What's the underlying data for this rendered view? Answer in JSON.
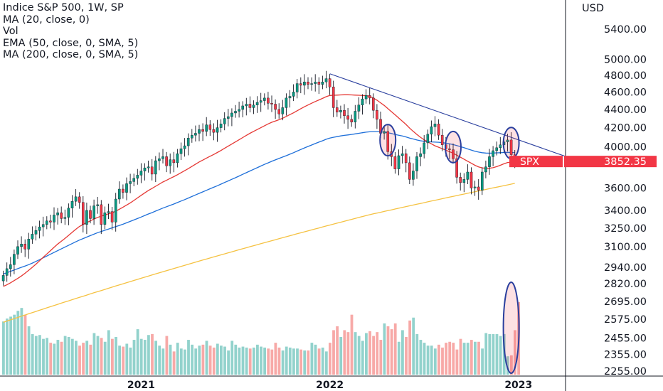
{
  "legend": {
    "title": "Indice S&P 500, 1W, SP",
    "lines": [
      "MA (20, close, 0)",
      "Vol",
      "EMA (50, close, 0, SMA, 5)",
      "MA (200, close, 0, SMA, 5)"
    ]
  },
  "colors": {
    "up": "#089981",
    "down": "#f23645",
    "vol_up": "#92d2cc",
    "vol_down": "#f7a9a7",
    "ma20": "#e53935",
    "ema50": "#1e6fd9",
    "ma200": "#f5c242",
    "trendline": "#2a3f9e",
    "circle": "#2a3f9e",
    "price_tag": "#f23645",
    "axis_text": "#131722",
    "axis_line": "#131722"
  },
  "chart_data": {
    "type": "candlestick",
    "currency": "USD",
    "y_ticks": [
      5400,
      5000,
      4800,
      4600,
      4400,
      4200,
      4000,
      3852.35,
      3600,
      3400,
      3250,
      3100,
      2940,
      2820,
      2695,
      2575,
      2455,
      2355,
      2255
    ],
    "y_tick_labels": [
      "5400.00",
      "5000.00",
      "4800.00",
      "4600.00",
      "4400.00",
      "4200.00",
      "4000.00",
      "3852.35",
      "3600.00",
      "3400.00",
      "3250.00",
      "3100.00",
      "2940.00",
      "2820.00",
      "2695.00",
      "2575.00",
      "2455.00",
      "2355.00",
      "2255.00"
    ],
    "x_ticks": [
      {
        "label": "2021",
        "week": 38
      },
      {
        "label": "2022",
        "week": 90
      },
      {
        "label": "2023",
        "week": 142
      }
    ],
    "last_price": {
      "symbol": "SPX",
      "value": "3852.35"
    },
    "closes": [
      2880,
      2930,
      2960,
      3040,
      3100,
      3120,
      3080,
      3160,
      3200,
      3230,
      3260,
      3280,
      3310,
      3300,
      3360,
      3380,
      3330,
      3340,
      3420,
      3480,
      3520,
      3470,
      3280,
      3400,
      3330,
      3440,
      3450,
      3280,
      3380,
      3390,
      3300,
      3500,
      3590,
      3560,
      3640,
      3660,
      3690,
      3720,
      3760,
      3790,
      3800,
      3730,
      3860,
      3880,
      3900,
      3810,
      3870,
      3840,
      3930,
      3980,
      4010,
      4090,
      4120,
      4140,
      4180,
      4160,
      4230,
      4180,
      4150,
      4200,
      4240,
      4300,
      4320,
      4360,
      4380,
      4400,
      4440,
      4460,
      4420,
      4450,
      4480,
      4500,
      4530,
      4470,
      4460,
      4400,
      4350,
      4420,
      4530,
      4550,
      4600,
      4700,
      4680,
      4720,
      4690,
      4700,
      4720,
      4690,
      4720,
      4760,
      4660,
      4420,
      4370,
      4390,
      4330,
      4290,
      4260,
      4380,
      4450,
      4520,
      4560,
      4530,
      4390,
      4290,
      4140,
      4160,
      3950,
      3900,
      3780,
      3910,
      3930,
      3840,
      3680,
      3760,
      3900,
      3930,
      4040,
      4130,
      4210,
      4240,
      4120,
      4020,
      3980,
      3970,
      3880,
      3700,
      3650,
      3680,
      3750,
      3600,
      3610,
      3580,
      3750,
      3800,
      3900,
      3960,
      3990,
      4020,
      4050,
      4070,
      3920,
      3850
    ],
    "ma20": [
      2800,
      2812,
      2826,
      2842,
      2858,
      2876,
      2896,
      2918,
      2940,
      2964,
      2990,
      3016,
      3042,
      3068,
      3094,
      3120,
      3142,
      3165,
      3190,
      3215,
      3240,
      3264,
      3280,
      3296,
      3310,
      3326,
      3340,
      3350,
      3360,
      3370,
      3380,
      3393,
      3410,
      3428,
      3447,
      3466,
      3487,
      3510,
      3533,
      3556,
      3578,
      3596,
      3616,
      3636,
      3656,
      3672,
      3690,
      3706,
      3724,
      3744,
      3763,
      3783,
      3804,
      3826,
      3848,
      3866,
      3886,
      3904,
      3922,
      3942,
      3962,
      3984,
      4006,
      4028,
      4050,
      4072,
      4095,
      4118,
      4140,
      4160,
      4180,
      4200,
      4220,
      4240,
      4258,
      4272,
      4286,
      4302,
      4322,
      4342,
      4362,
      4385,
      4408,
      4430,
      4450,
      4470,
      4490,
      4508,
      4526,
      4546,
      4560,
      4562,
      4564,
      4566,
      4568,
      4568,
      4566,
      4564,
      4562,
      4560,
      4558,
      4550,
      4530,
      4505,
      4475,
      4445,
      4410,
      4375,
      4340,
      4305,
      4270,
      4235,
      4195,
      4160,
      4128,
      4098,
      4072,
      4050,
      4030,
      4010,
      3995,
      3980,
      3965,
      3950,
      3935,
      3915,
      3895,
      3875,
      3855,
      3835,
      3815,
      3800,
      3790,
      3785,
      3786,
      3792,
      3802,
      3815,
      3830,
      3842,
      3846,
      3850
    ],
    "ema50": [
      2890,
      2900,
      2910,
      2920,
      2930,
      2940,
      2950,
      2960,
      2972,
      2985,
      2998,
      3012,
      3026,
      3040,
      3054,
      3068,
      3082,
      3096,
      3110,
      3124,
      3138,
      3152,
      3164,
      3176,
      3188,
      3200,
      3212,
      3222,
      3232,
      3242,
      3252,
      3262,
      3272,
      3282,
      3294,
      3306,
      3318,
      3330,
      3343,
      3356,
      3369,
      3381,
      3394,
      3407,
      3420,
      3432,
      3444,
      3456,
      3469,
      3482,
      3495,
      3509,
      3523,
      3537,
      3551,
      3565,
      3579,
      3593,
      3607,
      3621,
      3636,
      3651,
      3666,
      3681,
      3696,
      3712,
      3728,
      3744,
      3760,
      3776,
      3792,
      3808,
      3824,
      3839,
      3854,
      3868,
      3882,
      3896,
      3910,
      3925,
      3940,
      3956,
      3972,
      3988,
      4003,
      4018,
      4033,
      4048,
      4062,
      4077,
      4090,
      4098,
      4105,
      4112,
      4118,
      4123,
      4128,
      4134,
      4140,
      4146,
      4152,
      4156,
      4158,
      4158,
      4155,
      4152,
      4146,
      4138,
      4128,
      4120,
      4112,
      4102,
      4090,
      4080,
      4070,
      4062,
      4056,
      4052,
      4050,
      4048,
      4046,
      4042,
      4037,
      4030,
      4022,
      4012,
      4002,
      3990,
      3978,
      3966,
      3955,
      3946,
      3940,
      3936,
      3935,
      3936,
      3938,
      3940,
      3942,
      3943,
      3942,
      3940
    ],
    "ma200": [
      2555,
      2563,
      2571,
      2579,
      2587,
      2595,
      2603,
      2611,
      2619,
      2627,
      2635,
      2643,
      2651,
      2659,
      2667,
      2675,
      2683,
      2691,
      2699,
      2707,
      2715,
      2723,
      2731,
      2739,
      2747,
      2755,
      2763,
      2771,
      2779,
      2787,
      2795,
      2803,
      2811,
      2819,
      2827,
      2835,
      2843,
      2851,
      2859,
      2867,
      2875,
      2883,
      2891,
      2899,
      2907,
      2915,
      2923,
      2931,
      2939,
      2947,
      2955,
      2963,
      2971,
      2979,
      2987,
      2995,
      3003,
      3011,
      3019,
      3027,
      3035,
      3043,
      3051,
      3059,
      3067,
      3075,
      3083,
      3091,
      3099,
      3107,
      3115,
      3123,
      3131,
      3139,
      3147,
      3155,
      3163,
      3171,
      3179,
      3187,
      3195,
      3203,
      3211,
      3219,
      3227,
      3235,
      3243,
      3251,
      3259,
      3267,
      3275,
      3283,
      3291,
      3299,
      3307,
      3315,
      3323,
      3331,
      3339,
      3347,
      3355,
      3363,
      3370,
      3377,
      3384,
      3391,
      3398,
      3405,
      3412,
      3419,
      3426,
      3433,
      3440,
      3447,
      3454,
      3461,
      3468,
      3475,
      3482,
      3489,
      3496,
      3503,
      3510,
      3517,
      3524,
      3531,
      3538,
      3545,
      3552,
      3559,
      3566,
      3573,
      3580,
      3587,
      3594,
      3601,
      3608,
      3615,
      3622,
      3629,
      3636,
      3643
    ],
    "volume_relative": [
      0.55,
      0.58,
      0.6,
      0.62,
      0.66,
      0.69,
      0.62,
      0.5,
      0.42,
      0.4,
      0.41,
      0.37,
      0.38,
      0.33,
      0.32,
      0.36,
      0.34,
      0.4,
      0.39,
      0.37,
      0.35,
      0.3,
      0.33,
      0.35,
      0.31,
      0.43,
      0.4,
      0.38,
      0.34,
      0.46,
      0.37,
      0.39,
      0.3,
      0.29,
      0.32,
      0.28,
      0.36,
      0.47,
      0.37,
      0.36,
      0.41,
      0.42,
      0.35,
      0.3,
      0.27,
      0.4,
      0.31,
      0.24,
      0.33,
      0.27,
      0.26,
      0.36,
      0.31,
      0.27,
      0.3,
      0.31,
      0.35,
      0.3,
      0.28,
      0.32,
      0.3,
      0.29,
      0.25,
      0.35,
      0.31,
      0.28,
      0.29,
      0.28,
      0.27,
      0.28,
      0.31,
      0.29,
      0.28,
      0.27,
      0.26,
      0.33,
      0.28,
      0.25,
      0.29,
      0.28,
      0.27,
      0.27,
      0.26,
      0.25,
      0.25,
      0.33,
      0.31,
      0.27,
      0.28,
      0.24,
      0.33,
      0.46,
      0.5,
      0.39,
      0.46,
      0.44,
      0.62,
      0.44,
      0.4,
      0.35,
      0.43,
      0.45,
      0.4,
      0.44,
      0.36,
      0.53,
      0.5,
      0.47,
      0.53,
      0.34,
      0.46,
      0.39,
      0.56,
      0.59,
      0.42,
      0.36,
      0.33,
      0.3,
      0.3,
      0.27,
      0.31,
      0.28,
      0.33,
      0.34,
      0.33,
      0.26,
      0.37,
      0.33,
      0.33,
      0.36,
      0.34,
      0.34,
      0.27,
      0.43,
      0.42,
      0.42,
      0.42,
      0.4,
      0.42,
      0.19,
      0.2,
      0.46,
      0.75
    ],
    "trendline_points": [
      [
        90,
        4820
      ],
      [
        156,
        3890
      ]
    ],
    "circled_weeks": [
      106,
      124,
      140
    ]
  }
}
